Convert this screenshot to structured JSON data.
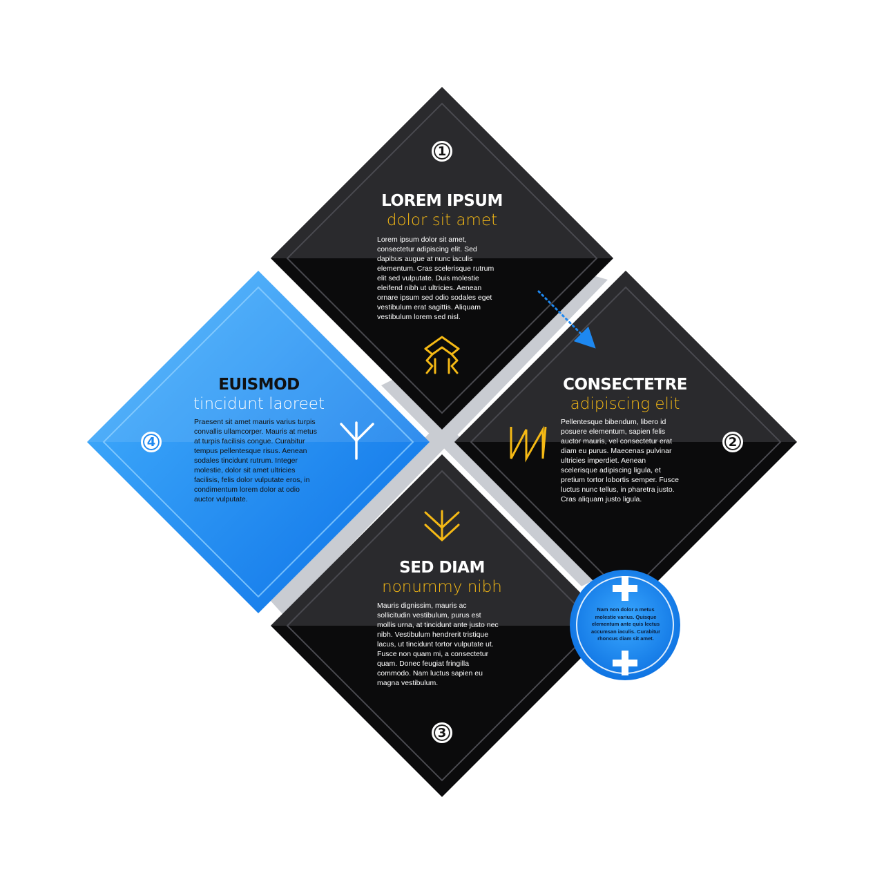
{
  "diagram": {
    "colors": {
      "dark": "#1b1b1e",
      "blue": "#1e88f0",
      "accent": "#f5b915",
      "gap": "#c9ccd2",
      "arrow": "#1e88f0"
    },
    "step1": {
      "number": "1",
      "title": "LOREM IPSUM",
      "subtitle": "dolor sit amet",
      "body": "Lorem ipsum dolor sit amet,\nconsectetur adipiscing elit. Sed\ndapibus augue at nunc iaculis\nelementum. Cras scelerisque rutrum\nelit sed vulputate. Duis molestie\neleifend nibh ut ultricies. Aenean\nornare ipsum sed odio sodales eget\nvestibulum erat sagittis. Aliquam\nvestibulum lorem sed nisl.",
      "icon": "peak-icon"
    },
    "step2": {
      "number": "2",
      "title": "CONSECTETRE",
      "subtitle": "adipiscing elit",
      "body": "Pellentesque bibendum, libero id\nposuere elementum, sapien felis\nauctor mauris, vel consectetur erat\ndiam eu purus. Maecenas pulvinar\nultricies imperdiet. Aenean\nscelerisque adipiscing ligula, et\npretium tortor lobortis semper. Fusce\nluctus nunc tellus, in pharetra justo.\nCras aliquam justo ligula.",
      "icon": "zigzag-icon"
    },
    "step3": {
      "number": "3",
      "title": "SED DIAM",
      "subtitle": "nonummy nibh",
      "body": "Mauris dignissim, mauris ac\nsollicitudin vestibulum, purus est\nmollis urna, at tincidunt ante justo nec\nnibh. Vestibulum hendrerit tristique\nlacus, ut tincidunt tortor vulputate ut.\nFusce non quam mi, a consectetur\nquam. Donec feugiat fringilla\ncommodo. Nam luctus sapien eu\nmagna vestibulum.",
      "icon": "chevron-down-icon"
    },
    "step4": {
      "number": "4",
      "title": "EUISMOD",
      "subtitle": "tincidunt laoreet",
      "body": "Praesent sit amet mauris varius turpis\nconvallis ullamcorper. Mauris at metus\nat turpis facilisis congue. Curabitur\ntempus pellentesque risus. Aenean\nsodales tincidunt rutrum. Integer\nmolestie, dolor sit amet ultricies\nfacilisis, felis dolor vulputate eros, in\ncondimentum lorem dolor at odio\nauctor vulputate.",
      "icon": "fork-icon"
    },
    "note": {
      "text": "Nam non dolor a metus\nmolestie varius. Quisque\nelementum ante quis lectus\naccumsan iaculis. Curabitur\nrhoncus diam sit amet.",
      "icon": "plus-icon"
    }
  }
}
